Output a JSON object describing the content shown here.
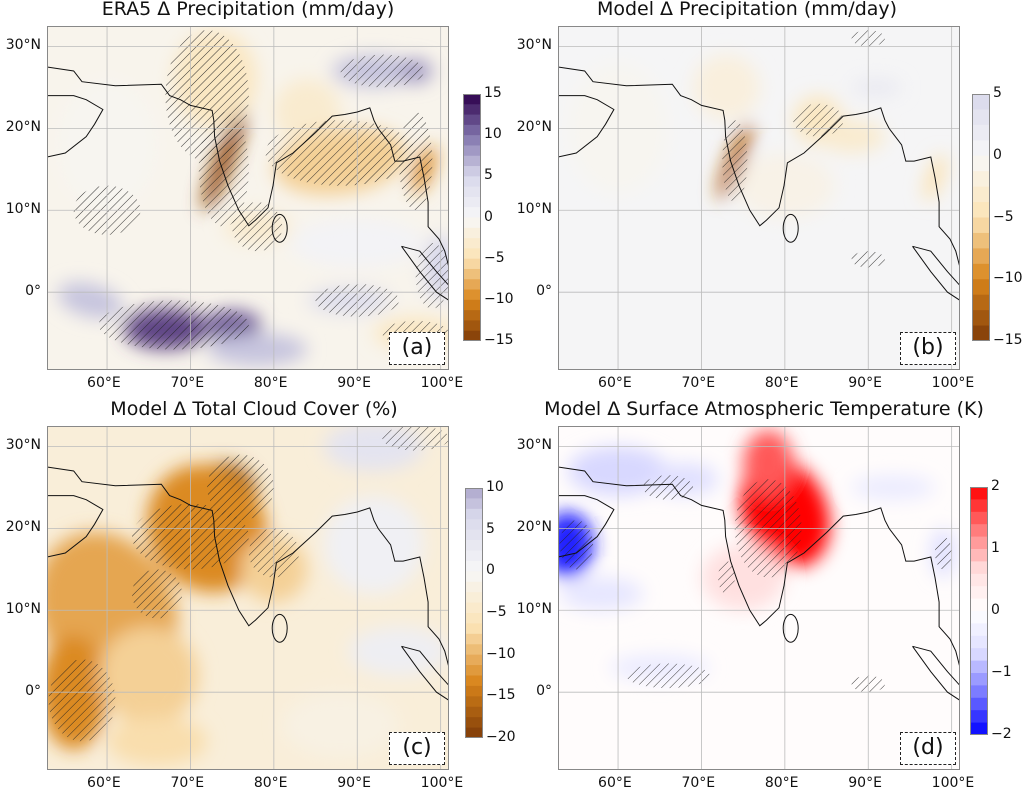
{
  "figure": {
    "lat_labels": [
      "30°N",
      "20°N",
      "10°N",
      "0°"
    ],
    "lat_values": [
      30,
      20,
      10,
      0
    ],
    "lon_labels": [
      "60°E",
      "70°E",
      "80°E",
      "90°E",
      "100°E"
    ],
    "lon_values": [
      60,
      70,
      80,
      90,
      100
    ],
    "extent": {
      "lon": [
        52.8,
        101
      ],
      "lat": [
        -9.5,
        32.5
      ]
    },
    "hatching_meaning": "",
    "panels": [
      {
        "label": "(a)",
        "title": "ERA5 Δ Precipitation (mm/day)",
        "colorbar": {
          "min": -15,
          "max": 15,
          "levels": 24,
          "ticks": [
            "15",
            "10",
            "5",
            "0",
            "−5",
            "−10",
            "−15"
          ],
          "tick_values": [
            15,
            10,
            5,
            0,
            -5,
            -10,
            -15
          ],
          "cmap": [
            "#7f3b08",
            "#d9851b",
            "#fbe3b5",
            "#f7f7f7",
            "#d8d8eb",
            "#8073ac",
            "#2d004b"
          ]
        }
      },
      {
        "label": "(b)",
        "title": "Model Δ Precipitation (mm/day)",
        "colorbar": {
          "min": -15,
          "max": 5,
          "levels": 16,
          "ticks": [
            "5",
            "0",
            "−5",
            "−10",
            "−15"
          ],
          "tick_values": [
            5,
            0,
            -5,
            -10,
            -15
          ],
          "cmap": [
            "#7f3b08",
            "#d9851b",
            "#fbe3b5",
            "#f7f7f7",
            "#d8d8eb",
            "#8073ac",
            "#2d004b"
          ]
        }
      },
      {
        "label": "(c)",
        "title": "Model Δ Total Cloud Cover (%)",
        "colorbar": {
          "min": -20,
          "max": 10,
          "levels": 24,
          "ticks": [
            "10",
            "5",
            "0",
            "−5",
            "−10",
            "−15",
            "−20"
          ],
          "tick_values": [
            10,
            5,
            0,
            -5,
            -10,
            -15,
            -20
          ],
          "cmap": [
            "#7f3b08",
            "#d9851b",
            "#fbe3b5",
            "#f7f7f7",
            "#d8d8eb",
            "#8073ac",
            "#2d004b"
          ]
        }
      },
      {
        "label": "(d)",
        "title": "Model Δ Surface Atmospheric Temperature (K)",
        "colorbar": {
          "min": -2,
          "max": 2,
          "levels": 20,
          "ticks": [
            "2",
            "1",
            "0",
            "−1",
            "−2"
          ],
          "tick_values": [
            2,
            1,
            0,
            -1,
            -2
          ],
          "cmap": [
            "#0000ff",
            "#7777ff",
            "#ddddff",
            "#ffffff",
            "#ffdddd",
            "#ff7777",
            "#ff0000"
          ]
        }
      }
    ]
  }
}
